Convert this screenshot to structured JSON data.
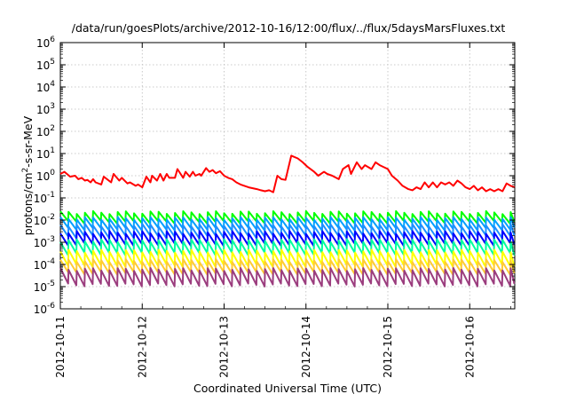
{
  "chart_data": {
    "type": "line",
    "title": "/data/run/goesPlots/archive/2012-10-16/12:00/flux/../flux/5daysMarsFluxes.txt",
    "xlabel": "Coordinated Universal Time (UTC)",
    "ylabel": "protons/cm²-s-sr-MeV",
    "ylabel_base": "protons/cm",
    "ylabel_sup": "2",
    "ylabel_tail": "-s-sr-MeV",
    "yscale": "log",
    "ylim_exponents": [
      -6,
      6
    ],
    "y_ticks": [
      {
        "base": "10",
        "exp": "-6"
      },
      {
        "base": "10",
        "exp": "-5"
      },
      {
        "base": "10",
        "exp": "-4"
      },
      {
        "base": "10",
        "exp": "-3"
      },
      {
        "base": "10",
        "exp": "-2"
      },
      {
        "base": "10",
        "exp": "-1"
      },
      {
        "base": "10",
        "exp": "0"
      },
      {
        "base": "10",
        "exp": "1"
      },
      {
        "base": "10",
        "exp": "2"
      },
      {
        "base": "10",
        "exp": "3"
      },
      {
        "base": "10",
        "exp": "4"
      },
      {
        "base": "10",
        "exp": "5"
      },
      {
        "base": "10",
        "exp": "6"
      }
    ],
    "x_ticks": [
      "2012-10-11",
      "2012-10-12",
      "2012-10-13",
      "2012-10-14",
      "2012-10-15",
      "2012-10-16"
    ],
    "x_range_days": [
      0,
      5.55
    ],
    "grid": true,
    "legend": "none",
    "series": [
      {
        "color": "#ff0000",
        "x": [
          0.0,
          0.05,
          0.12,
          0.18,
          0.22,
          0.26,
          0.3,
          0.33,
          0.37,
          0.4,
          0.43,
          0.5,
          0.53,
          0.62,
          0.65,
          0.72,
          0.75,
          0.82,
          0.85,
          0.92,
          0.95,
          1.0,
          1.05,
          1.1,
          1.12,
          1.18,
          1.22,
          1.26,
          1.3,
          1.33,
          1.4,
          1.43,
          1.5,
          1.53,
          1.58,
          1.62,
          1.65,
          1.7,
          1.72,
          1.78,
          1.82,
          1.86,
          1.9,
          1.95,
          2.0,
          2.05,
          2.1,
          2.15,
          2.2,
          2.3,
          2.4,
          2.45,
          2.5,
          2.55,
          2.6,
          2.65,
          2.7,
          2.75,
          2.82,
          2.9,
          2.96,
          3.02,
          3.1,
          3.15,
          3.22,
          3.26,
          3.32,
          3.4,
          3.45,
          3.52,
          3.55,
          3.62,
          3.68,
          3.72,
          3.8,
          3.85,
          3.9,
          4.0,
          4.05,
          4.12,
          4.18,
          4.25,
          4.3,
          4.35,
          4.4,
          4.45,
          4.5,
          4.55,
          4.6,
          4.65,
          4.7,
          4.75,
          4.8,
          4.85,
          4.9,
          4.95,
          5.0,
          5.05,
          5.1,
          5.15,
          5.2,
          5.25,
          5.3,
          5.35,
          5.4,
          5.45,
          5.5,
          5.55
        ],
        "y": [
          1.2,
          1.5,
          0.9,
          1.0,
          0.7,
          0.8,
          0.6,
          0.65,
          0.5,
          0.7,
          0.5,
          0.4,
          0.9,
          0.5,
          1.2,
          0.6,
          0.8,
          0.45,
          0.5,
          0.35,
          0.4,
          0.3,
          0.9,
          0.5,
          1.0,
          0.6,
          1.2,
          0.6,
          1.2,
          0.8,
          0.8,
          2.0,
          0.8,
          1.5,
          0.9,
          1.5,
          1.0,
          1.2,
          1.0,
          2.2,
          1.5,
          1.8,
          1.3,
          1.6,
          1.0,
          0.8,
          0.7,
          0.5,
          0.4,
          0.3,
          0.25,
          0.22,
          0.2,
          0.22,
          0.18,
          1.0,
          0.7,
          0.65,
          8.0,
          6.0,
          4.0,
          2.5,
          1.5,
          1.0,
          1.5,
          1.2,
          1.0,
          0.7,
          2.0,
          3.0,
          1.2,
          4.0,
          2.0,
          3.0,
          2.0,
          4.0,
          3.0,
          2.0,
          1.0,
          0.6,
          0.35,
          0.25,
          0.22,
          0.3,
          0.25,
          0.5,
          0.3,
          0.5,
          0.3,
          0.5,
          0.4,
          0.5,
          0.35,
          0.6,
          0.45,
          0.3,
          0.25,
          0.35,
          0.22,
          0.3,
          0.2,
          0.25,
          0.2,
          0.25,
          0.2,
          0.45,
          0.35,
          0.3
        ]
      },
      {
        "color": "#00ff00",
        "hi": 0.022,
        "lo": 0.008
      },
      {
        "color": "#00a0ff",
        "hi": 0.012,
        "lo": 0.004
      },
      {
        "color": "#1e90ff",
        "hi": 0.006,
        "lo": 0.0018
      },
      {
        "color": "#0000ff",
        "hi": 0.0028,
        "lo": 0.0008
      },
      {
        "color": "#00ffa0",
        "hi": 0.0012,
        "lo": 0.0003
      },
      {
        "color": "#ffff00",
        "hi": 0.0004,
        "lo": 9e-05
      },
      {
        "color": "#ffcc33",
        "hi": 0.00015,
        "lo": 4e-05
      },
      {
        "color": "#9b3d7e",
        "hi": 6e-05,
        "lo": 1.2e-05
      }
    ],
    "sawtooth_times_days": [
      0.0,
      0.1,
      0.2,
      0.3,
      0.4,
      0.5,
      0.6,
      0.7,
      0.8,
      0.9,
      1.0,
      1.1,
      1.2,
      1.3,
      1.4,
      1.5,
      1.6,
      1.7,
      1.8,
      1.9,
      2.0,
      2.1,
      2.2,
      2.3,
      2.4,
      2.5,
      2.6,
      2.7,
      2.8,
      2.9,
      3.0,
      3.1,
      3.2,
      3.3,
      3.4,
      3.5,
      3.6,
      3.7,
      3.8,
      3.9,
      4.0,
      4.1,
      4.2,
      4.3,
      4.4,
      4.5,
      4.6,
      4.7,
      4.8,
      4.9,
      5.0,
      5.1,
      5.2,
      5.3,
      5.4,
      5.5
    ]
  }
}
